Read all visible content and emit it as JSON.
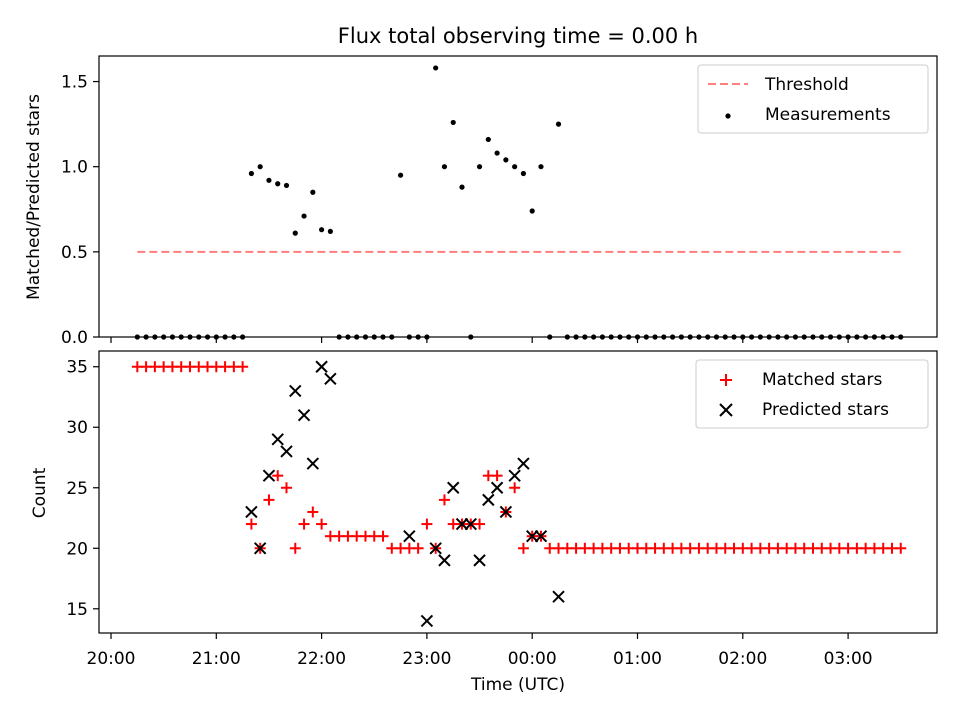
{
  "title": "Flux total observing time = 0.00 h",
  "chart_data": [
    {
      "type": "scatter",
      "ylabel": "Matched/Predicted stars",
      "ylim": [
        0,
        1.65
      ],
      "yticks": [
        0.0,
        0.5,
        1.0,
        1.5
      ],
      "ytick_labels": [
        "0.0",
        "0.5",
        "1.0",
        "1.5"
      ],
      "legend_position": "top-right",
      "threshold": {
        "name": "Threshold",
        "value": 0.5,
        "x_start": "20:15",
        "x_end": "03:30",
        "color": "#ff7f7f"
      },
      "series": [
        {
          "name": "Measurements",
          "color": "#000000",
          "marker": "dot",
          "x": [
            "20:15",
            "20:20",
            "20:25",
            "20:30",
            "20:35",
            "20:40",
            "20:45",
            "20:50",
            "20:55",
            "21:00",
            "21:05",
            "21:10",
            "21:15",
            "21:20",
            "21:25",
            "21:30",
            "21:35",
            "21:40",
            "21:45",
            "21:50",
            "21:55",
            "22:00",
            "22:05",
            "22:10",
            "22:15",
            "22:20",
            "22:25",
            "22:30",
            "22:35",
            "22:40",
            "22:45",
            "22:50",
            "22:55",
            "23:00",
            "23:05",
            "23:10",
            "23:15",
            "23:20",
            "23:25",
            "23:30",
            "23:35",
            "23:40",
            "23:45",
            "23:50",
            "23:55",
            "00:00",
            "00:05",
            "00:10",
            "00:15",
            "00:20",
            "00:25",
            "00:30",
            "00:35",
            "00:40",
            "00:45",
            "00:50",
            "00:55",
            "01:00",
            "01:05",
            "01:10",
            "01:15",
            "01:20",
            "01:25",
            "01:30",
            "01:35",
            "01:40",
            "01:45",
            "01:50",
            "01:55",
            "02:00",
            "02:05",
            "02:10",
            "02:15",
            "02:20",
            "02:25",
            "02:30",
            "02:35",
            "02:40",
            "02:45",
            "02:50",
            "02:55",
            "03:00",
            "03:05",
            "03:10",
            "03:15",
            "03:20",
            "03:25",
            "03:30"
          ],
          "y": [
            0,
            0,
            0,
            0,
            0,
            0,
            0,
            0,
            0,
            0,
            0,
            0,
            0,
            0.96,
            1.0,
            0.92,
            0.9,
            0.89,
            0.61,
            0.71,
            0.85,
            0.63,
            0.62,
            0,
            0,
            0,
            0,
            0,
            0,
            0,
            0.95,
            0,
            0,
            0,
            1.58,
            1.0,
            1.26,
            0.88,
            0,
            1.0,
            1.16,
            1.08,
            1.04,
            1.0,
            0.96,
            0.74,
            1.0,
            0,
            1.25,
            0,
            0,
            0,
            0,
            0,
            0,
            0,
            0,
            0,
            0,
            0,
            0,
            0,
            0,
            0,
            0,
            0,
            0,
            0,
            0,
            0,
            0,
            0,
            0,
            0,
            0,
            0,
            0,
            0,
            0,
            0,
            0,
            0,
            0,
            0,
            0,
            0,
            0,
            0
          ]
        }
      ]
    },
    {
      "type": "scatter",
      "xlabel": "Time (UTC)",
      "ylabel": "Count",
      "ylim": [
        13,
        36.3
      ],
      "yticks": [
        15,
        20,
        25,
        30,
        35
      ],
      "ytick_labels": [
        "15",
        "20",
        "25",
        "30",
        "35"
      ],
      "xtick_labels": [
        "20:00",
        "21:00",
        "22:00",
        "23:00",
        "00:00",
        "01:00",
        "02:00",
        "03:00"
      ],
      "legend_position": "top-right",
      "series": [
        {
          "name": "Matched stars",
          "color": "#ff0000",
          "marker": "plus",
          "x": [
            "20:15",
            "20:20",
            "20:25",
            "20:30",
            "20:35",
            "20:40",
            "20:45",
            "20:50",
            "20:55",
            "21:00",
            "21:05",
            "21:10",
            "21:15",
            "21:20",
            "21:25",
            "21:30",
            "21:35",
            "21:40",
            "21:45",
            "21:50",
            "21:55",
            "22:00",
            "22:05",
            "22:10",
            "22:15",
            "22:20",
            "22:25",
            "22:30",
            "22:35",
            "22:40",
            "22:45",
            "22:50",
            "22:55",
            "23:00",
            "23:05",
            "23:10",
            "23:15",
            "23:20",
            "23:25",
            "23:30",
            "23:35",
            "23:40",
            "23:45",
            "23:50",
            "23:55",
            "00:00",
            "00:05",
            "00:10",
            "00:15",
            "00:20",
            "00:25",
            "00:30",
            "00:35",
            "00:40",
            "00:45",
            "00:50",
            "00:55",
            "01:00",
            "01:05",
            "01:10",
            "01:15",
            "01:20",
            "01:25",
            "01:30",
            "01:35",
            "01:40",
            "01:45",
            "01:50",
            "01:55",
            "02:00",
            "02:05",
            "02:10",
            "02:15",
            "02:20",
            "02:25",
            "02:30",
            "02:35",
            "02:40",
            "02:45",
            "02:50",
            "02:55",
            "03:00",
            "03:05",
            "03:10",
            "03:15",
            "03:20",
            "03:25",
            "03:30"
          ],
          "y": [
            35,
            35,
            35,
            35,
            35,
            35,
            35,
            35,
            35,
            35,
            35,
            35,
            35,
            22,
            20,
            24,
            26,
            25,
            20,
            22,
            23,
            22,
            21,
            21,
            21,
            21,
            21,
            21,
            21,
            20,
            20,
            20,
            20,
            22,
            20,
            24,
            22,
            22,
            22,
            22,
            26,
            26,
            23,
            25,
            20,
            21,
            21,
            20,
            20,
            20,
            20,
            20,
            20,
            20,
            20,
            20,
            20,
            20,
            20,
            20,
            20,
            20,
            20,
            20,
            20,
            20,
            20,
            20,
            20,
            20,
            20,
            20,
            20,
            20,
            20,
            20,
            20,
            20,
            20,
            20,
            20,
            20,
            20,
            20,
            20,
            20,
            20,
            20
          ]
        },
        {
          "name": "Predicted stars",
          "color": "#000000",
          "marker": "cross",
          "x": [
            "21:20",
            "21:25",
            "21:30",
            "21:35",
            "21:40",
            "21:45",
            "21:50",
            "21:55",
            "22:00",
            "22:05",
            "22:50",
            "23:00",
            "23:05",
            "23:10",
            "23:15",
            "23:20",
            "23:25",
            "23:30",
            "23:35",
            "23:40",
            "23:45",
            "23:50",
            "23:55",
            "00:00",
            "00:05",
            "00:15"
          ],
          "y": [
            23,
            20,
            26,
            29,
            28,
            33,
            31,
            27,
            35,
            34,
            21,
            14,
            20,
            19,
            25,
            22,
            22,
            19,
            24,
            25,
            23,
            26,
            27,
            21,
            21,
            16
          ]
        }
      ]
    }
  ]
}
